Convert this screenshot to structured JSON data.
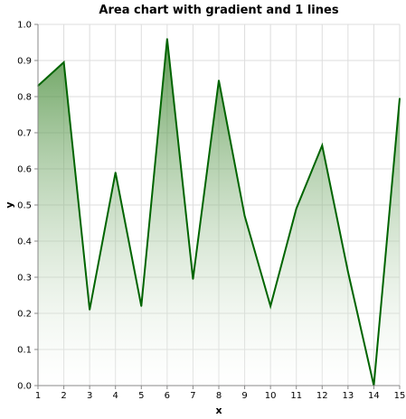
{
  "chart_data": {
    "type": "area",
    "title": "Area chart with gradient and 1 lines",
    "xlabel": "x",
    "ylabel": "y",
    "x": [
      1,
      2,
      3,
      4,
      5,
      6,
      7,
      8,
      9,
      10,
      11,
      12,
      13,
      14,
      15
    ],
    "xlim": [
      1,
      15
    ],
    "ylim": [
      0,
      1.0
    ],
    "x_ticks": [
      "1",
      "2",
      "3",
      "4",
      "5",
      "6",
      "7",
      "8",
      "9",
      "10",
      "11",
      "12",
      "13",
      "14",
      "15"
    ],
    "y_ticks": [
      "0.0",
      "0.1",
      "0.2",
      "0.3",
      "0.4",
      "0.5",
      "0.6",
      "0.7",
      "0.8",
      "0.9",
      "1.0"
    ],
    "grid": true,
    "legend": "none",
    "series": [
      {
        "name": "y",
        "values": [
          0.83,
          0.895,
          0.21,
          0.59,
          0.22,
          0.96,
          0.295,
          0.845,
          0.47,
          0.22,
          0.49,
          0.665,
          0.315,
          0.0,
          0.795
        ],
        "line_color": "#006400",
        "fill_color_top": "#2e7d1e",
        "fill_color_bottom": "#ffffff"
      }
    ]
  }
}
